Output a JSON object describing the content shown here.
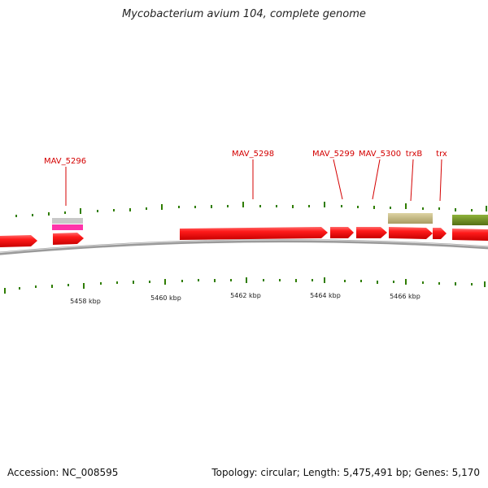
{
  "title": "Mycobacterium avium 104, complete genome",
  "footer": {
    "accession": "Accession: NC_008595",
    "summary": "Topology: circular; Length: 5,475,491 bp; Genes: 5,170"
  },
  "scale_labels": [
    "5458 kbp",
    "5460 kbp",
    "5462 kbp",
    "5464 kbp",
    "5466 kbp"
  ],
  "gene_labels": [
    "MAV_5296",
    "MAV_5298",
    "MAV_5299",
    "MAV_5300",
    "trxB",
    "trx"
  ],
  "colors": {
    "gene": "#ff0000",
    "label": "#d40000",
    "tick": "#2f7d00",
    "backbone": "#8a8a8a",
    "feature_tan": "#c8bb80",
    "feature_olive": "#6f8f22",
    "feature_grey": "#c8c8c8",
    "feature_pink": "#ff33aa"
  }
}
